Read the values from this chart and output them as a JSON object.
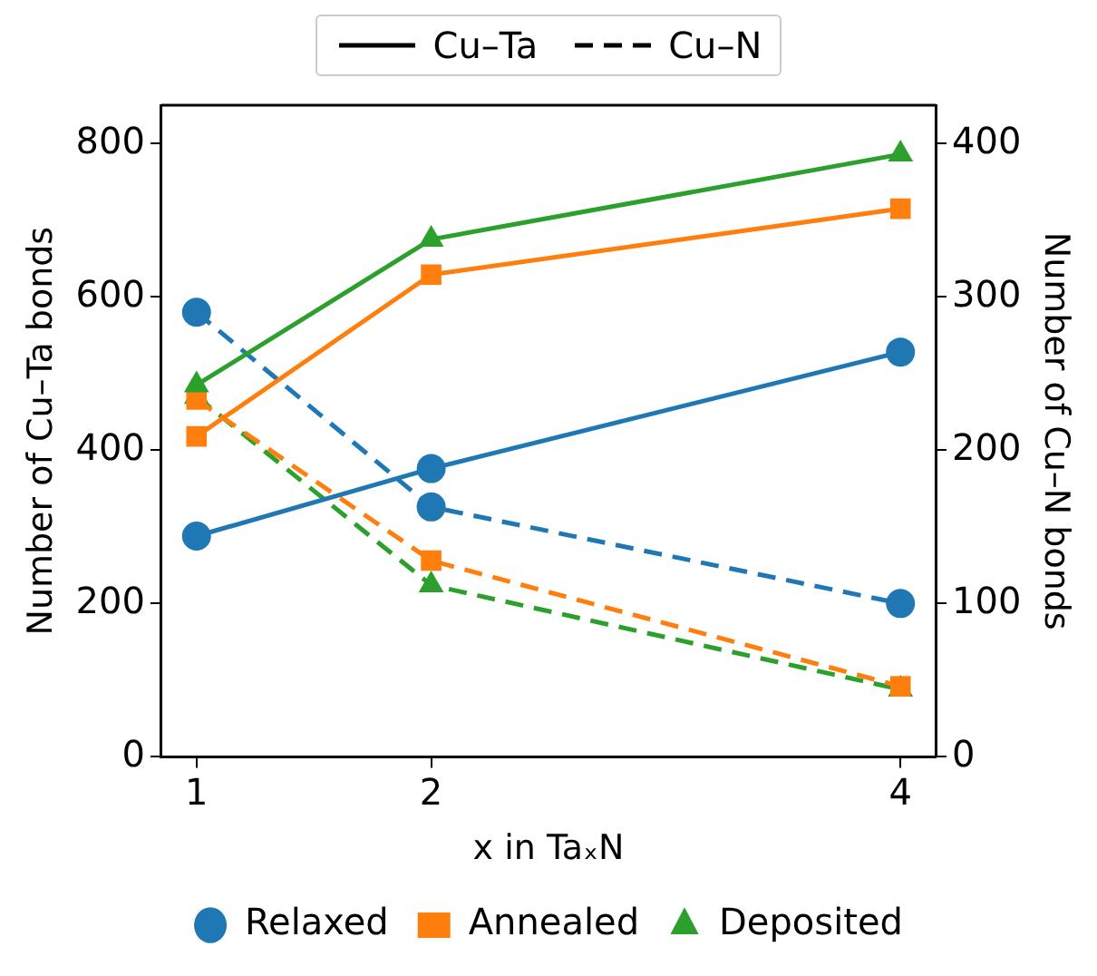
{
  "chart_data": {
    "type": "line",
    "xlabel": "x in TaₓN",
    "ylabel": "Number of Cu–Ta bonds",
    "y2label": "Number of Cu–N bonds",
    "x": [
      1,
      2,
      4
    ],
    "xlim": [
      0.85,
      4.15
    ],
    "xticks": [
      1,
      2,
      4
    ],
    "ylim": [
      0,
      850
    ],
    "yticks": [
      0,
      200,
      400,
      600,
      800
    ],
    "y2lim": [
      0,
      425
    ],
    "y2ticks": [
      0,
      100,
      200,
      300,
      400
    ],
    "series": [
      {
        "name": "Relaxed",
        "color": "#1f77b4",
        "marker": "circle",
        "line_style": "solid",
        "values": [
          288,
          376,
          528
        ]
      },
      {
        "name": "Annealed",
        "color": "#ff7f0e",
        "marker": "square",
        "line_style": "solid",
        "values": [
          418,
          629,
          715
        ]
      },
      {
        "name": "Deposited",
        "color": "#2ca02c",
        "marker": "triangle",
        "line_style": "solid",
        "values": [
          485,
          675,
          786
        ]
      },
      {
        "color": "#1f77b4",
        "marker": "circle",
        "line_style": "dashed",
        "axis": "y2",
        "values": [
          290,
          163,
          100
        ]
      },
      {
        "color": "#ff7f0e",
        "marker": "square",
        "line_style": "dashed",
        "axis": "y2",
        "values": [
          233,
          128,
          46
        ]
      },
      {
        "color": "#2ca02c",
        "marker": "triangle",
        "line_style": "dashed",
        "axis": "y2",
        "values": [
          235,
          112,
          44
        ]
      }
    ],
    "annotations": [
      "Cu–Ta",
      "Cu–N"
    ],
    "legend": "bottom",
    "grid": false
  }
}
